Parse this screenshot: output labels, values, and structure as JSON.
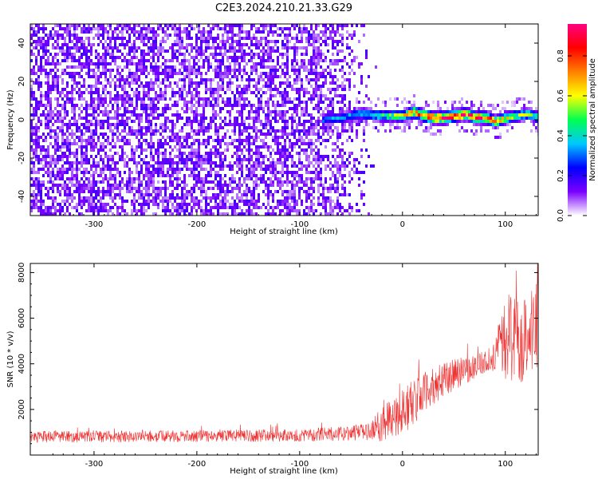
{
  "title": "C2E3.2024.210.21.33.G29",
  "chart_data": [
    {
      "type": "heatmap",
      "title": "C2E3.2024.210.21.33.G29",
      "xlabel": "Height of straight line (km)",
      "ylabel": "Frequency (Hz)",
      "xlim": [
        -362,
        132
      ],
      "ylim": [
        -50,
        50
      ],
      "x_ticks": [
        -300,
        -200,
        -100,
        0,
        100
      ],
      "y_ticks": [
        -40,
        -20,
        0,
        20,
        40
      ],
      "colorbar": {
        "label": "Normalized spectral amplitude",
        "range": [
          0,
          0.96
        ],
        "ticks": [
          0.0,
          0.2,
          0.4,
          0.6,
          0.8
        ],
        "colormap": [
          "#ffffff",
          "#7a00ff",
          "#0000ff",
          "#00c8ff",
          "#00ff50",
          "#ffff00",
          "#ff8000",
          "#ff0000",
          "#ff0080"
        ]
      },
      "noise_region": {
        "x": [
          -362,
          -80
        ],
        "fade_x": [
          -80,
          -25
        ],
        "amplitude_approx": 0.15
      },
      "signal_track": {
        "x": [
          -80,
          -60,
          -40,
          -20,
          0,
          10,
          20,
          30,
          40,
          50,
          60,
          70,
          80,
          90,
          100,
          110,
          120,
          132
        ],
        "freq": [
          0,
          1,
          3,
          2,
          2,
          4,
          2,
          1,
          1,
          2,
          3,
          1,
          1,
          -1,
          1,
          2,
          3,
          1
        ],
        "amplitude": [
          0.3,
          0.35,
          0.4,
          0.45,
          0.6,
          0.75,
          0.85,
          0.9,
          0.95,
          0.92,
          0.88,
          0.85,
          0.9,
          0.7,
          0.6,
          0.55,
          0.5,
          0.5
        ]
      },
      "grid": false
    },
    {
      "type": "line",
      "xlabel": "Height of straight line (km)",
      "ylabel": "SNR (10 * v/v)",
      "xlim": [
        -362,
        132
      ],
      "ylim": [
        0,
        8400
      ],
      "x_ticks": [
        -300,
        -200,
        -100,
        0,
        100
      ],
      "y_ticks": [
        2000,
        4000,
        6000,
        8000
      ],
      "color": "#ee3333",
      "grid": false,
      "series": [
        {
          "x": [
            -362,
            -300,
            -250,
            -200,
            -150,
            -100,
            -80,
            -60,
            -40,
            -30,
            -20,
            -10,
            0,
            10,
            20,
            30,
            40,
            50,
            60,
            70,
            80,
            90,
            95,
            100,
            110,
            120,
            132
          ],
          "mean": [
            800,
            800,
            820,
            830,
            850,
            870,
            900,
            950,
            1000,
            1050,
            1400,
            1700,
            1900,
            2300,
            2700,
            3000,
            3300,
            3500,
            3700,
            3900,
            4100,
            4300,
            4800,
            5200,
            5000,
            5300,
            5600
          ],
          "spread": [
            250,
            250,
            250,
            260,
            270,
            280,
            300,
            320,
            350,
            400,
            800,
            1000,
            1100,
            1000,
            900,
            800,
            750,
            700,
            600,
            550,
            500,
            600,
            1400,
            1900,
            2000,
            2000,
            2000
          ]
        }
      ]
    }
  ]
}
